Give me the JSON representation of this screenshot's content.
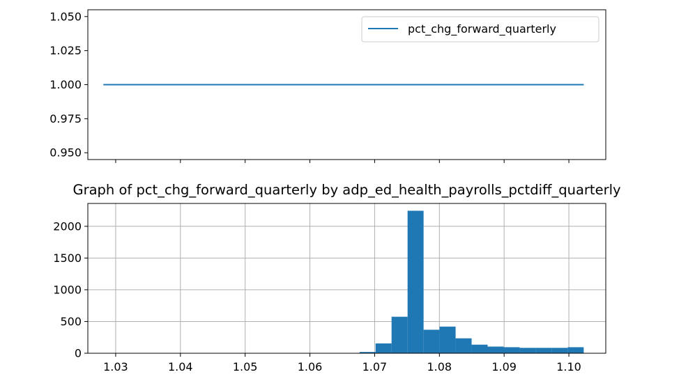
{
  "chart_data": [
    {
      "type": "line",
      "title": "",
      "xlabel": "",
      "ylabel": "",
      "x_range": [
        1.0257,
        1.1057
      ],
      "ylim": [
        0.945,
        1.055
      ],
      "yticks": [
        0.95,
        0.975,
        1.0,
        1.025,
        1.05
      ],
      "ytick_labels": [
        "0.950",
        "0.975",
        "1.000",
        "1.025",
        "1.050"
      ],
      "xticks": [
        1.03,
        1.04,
        1.05,
        1.06,
        1.07,
        1.08,
        1.09,
        1.1
      ],
      "xtick_labels_shown": false,
      "grid": false,
      "legend": {
        "position": "top-right"
      },
      "series": [
        {
          "name": "pct_chg_forward_quarterly",
          "color": "#1f77b4",
          "x": [
            1.0281,
            1.1023
          ],
          "y": [
            1.0,
            1.0
          ]
        }
      ]
    },
    {
      "type": "bar",
      "subtype": "histogram",
      "title": "Graph of pct_chg_forward_quarterly by adp_ed_health_payrolls_pctdiff_quarterly",
      "xlabel": "",
      "ylabel": "",
      "xlim": [
        1.0257,
        1.1057
      ],
      "ylim": [
        0,
        2360
      ],
      "xticks": [
        1.03,
        1.04,
        1.05,
        1.06,
        1.07,
        1.08,
        1.09,
        1.1
      ],
      "xtick_labels": [
        "1.03",
        "1.04",
        "1.05",
        "1.06",
        "1.07",
        "1.08",
        "1.09",
        "1.10"
      ],
      "yticks": [
        0,
        500,
        1000,
        1500,
        2000
      ],
      "ytick_labels": [
        "0",
        "500",
        "1000",
        "1500",
        "2000"
      ],
      "grid": true,
      "color": "#1f77b4",
      "bin_start": 1.0281,
      "bin_width": 0.002473,
      "counts": [
        4,
        4,
        3,
        3,
        3,
        3,
        3,
        3,
        3,
        3,
        3,
        3,
        3,
        3,
        3,
        3,
        20,
        155,
        575,
        2245,
        370,
        420,
        235,
        135,
        105,
        95,
        85,
        85,
        85,
        95
      ]
    }
  ]
}
